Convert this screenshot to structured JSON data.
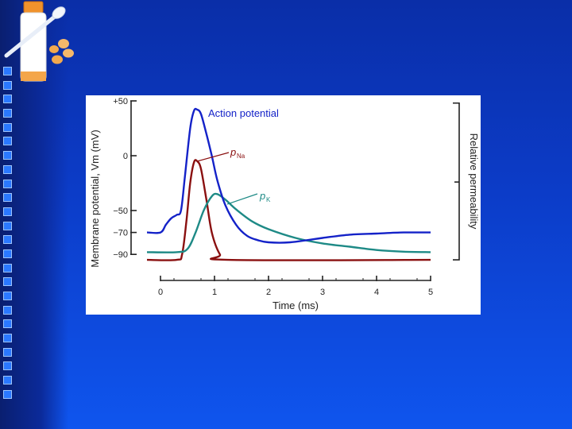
{
  "slide": {
    "colors": {
      "accent": "#1a5cff",
      "square": "#2a78ff"
    },
    "decor_icon": "medicine-bottle-spoon-pills-icon",
    "left_squares_count": 24
  },
  "chart_data": {
    "type": "line",
    "xlabel": "Time (ms)",
    "ylabel_left": "Membrane potential, Vm (mV)",
    "ylabel_right": "Relative permeability",
    "x_ticks": [
      0,
      1,
      2,
      3,
      4,
      5
    ],
    "y_ticks": [
      {
        "value": 50,
        "label": "+50"
      },
      {
        "value": 0,
        "label": "0"
      },
      {
        "value": -50,
        "label": "−50"
      },
      {
        "value": -70,
        "label": "−70"
      },
      {
        "value": -90,
        "label": "−90"
      }
    ],
    "xlim": [
      0,
      5
    ],
    "ylim": [
      -98,
      50
    ],
    "series": [
      {
        "name": "Action potential",
        "color": "#1422c8",
        "points": [
          [
            -0.25,
            -70
          ],
          [
            0,
            -70
          ],
          [
            0.1,
            -63
          ],
          [
            0.2,
            -57
          ],
          [
            0.3,
            -54
          ],
          [
            0.38,
            -50
          ],
          [
            0.45,
            -20
          ],
          [
            0.55,
            25
          ],
          [
            0.62,
            41
          ],
          [
            0.68,
            42
          ],
          [
            0.75,
            38
          ],
          [
            0.85,
            20
          ],
          [
            0.95,
            0
          ],
          [
            1.05,
            -22
          ],
          [
            1.2,
            -45
          ],
          [
            1.4,
            -63
          ],
          [
            1.6,
            -73
          ],
          [
            1.8,
            -77
          ],
          [
            2.0,
            -79
          ],
          [
            2.4,
            -79
          ],
          [
            3.0,
            -75
          ],
          [
            3.5,
            -72
          ],
          [
            4.0,
            -71
          ],
          [
            4.5,
            -70
          ],
          [
            5.0,
            -70
          ]
        ]
      },
      {
        "name": "pNa",
        "color": "#8a1010",
        "points": [
          [
            -0.25,
            -95
          ],
          [
            0.3,
            -95
          ],
          [
            0.4,
            -90
          ],
          [
            0.48,
            -60
          ],
          [
            0.55,
            -25
          ],
          [
            0.62,
            -6
          ],
          [
            0.68,
            -5
          ],
          [
            0.75,
            -12
          ],
          [
            0.85,
            -40
          ],
          [
            0.95,
            -70
          ],
          [
            1.1,
            -90
          ],
          [
            1.25,
            -95
          ],
          [
            5.0,
            -95
          ]
        ]
      },
      {
        "name": "pK",
        "color": "#1e8a86",
        "points": [
          [
            -0.25,
            -88
          ],
          [
            0.3,
            -88
          ],
          [
            0.5,
            -85
          ],
          [
            0.65,
            -70
          ],
          [
            0.8,
            -50
          ],
          [
            0.95,
            -37
          ],
          [
            1.05,
            -35
          ],
          [
            1.2,
            -40
          ],
          [
            1.4,
            -49
          ],
          [
            1.7,
            -60
          ],
          [
            2.0,
            -67
          ],
          [
            2.5,
            -75
          ],
          [
            3.0,
            -80
          ],
          [
            3.5,
            -83
          ],
          [
            4.0,
            -86
          ],
          [
            4.5,
            -87.5
          ],
          [
            5.0,
            -88
          ]
        ]
      }
    ],
    "annotations": [
      {
        "text": "Action potential",
        "series": "Action potential"
      },
      {
        "text": "p",
        "subscript": "Na",
        "series": "pNa"
      },
      {
        "text": "p",
        "subscript": "K",
        "series": "pK"
      }
    ]
  }
}
